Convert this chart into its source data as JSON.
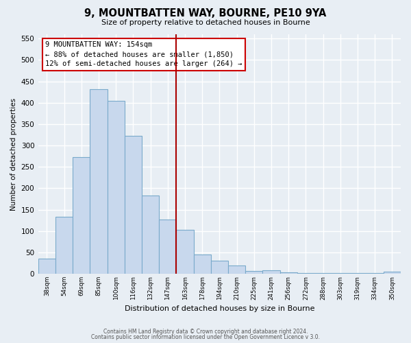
{
  "title": "9, MOUNTBATTEN WAY, BOURNE, PE10 9YA",
  "subtitle": "Size of property relative to detached houses in Bourne",
  "xlabel": "Distribution of detached houses by size in Bourne",
  "ylabel": "Number of detached properties",
  "bin_labels": [
    "38sqm",
    "54sqm",
    "69sqm",
    "85sqm",
    "100sqm",
    "116sqm",
    "132sqm",
    "147sqm",
    "163sqm",
    "178sqm",
    "194sqm",
    "210sqm",
    "225sqm",
    "241sqm",
    "256sqm",
    "272sqm",
    "288sqm",
    "303sqm",
    "319sqm",
    "334sqm",
    "350sqm"
  ],
  "bar_heights": [
    35,
    133,
    272,
    432,
    405,
    322,
    183,
    127,
    103,
    45,
    30,
    20,
    7,
    8,
    3,
    2,
    2,
    1,
    1,
    1,
    5
  ],
  "bar_color": "#C8D8ED",
  "bar_edge_color": "#7AAACB",
  "vline_x": 7.5,
  "vline_color": "#AA0000",
  "ylim": [
    0,
    560
  ],
  "yticks": [
    0,
    50,
    100,
    150,
    200,
    250,
    300,
    350,
    400,
    450,
    500,
    550
  ],
  "annotation_title": "9 MOUNTBATTEN WAY: 154sqm",
  "annotation_line1": "← 88% of detached houses are smaller (1,850)",
  "annotation_line2": "12% of semi-detached houses are larger (264) →",
  "annotation_box_color": "#CC0000",
  "footer_line1": "Contains HM Land Registry data © Crown copyright and database right 2024.",
  "footer_line2": "Contains public sector information licensed under the Open Government Licence v 3.0.",
  "background_color": "#E8EEF4",
  "grid_color": "#FFFFFF"
}
